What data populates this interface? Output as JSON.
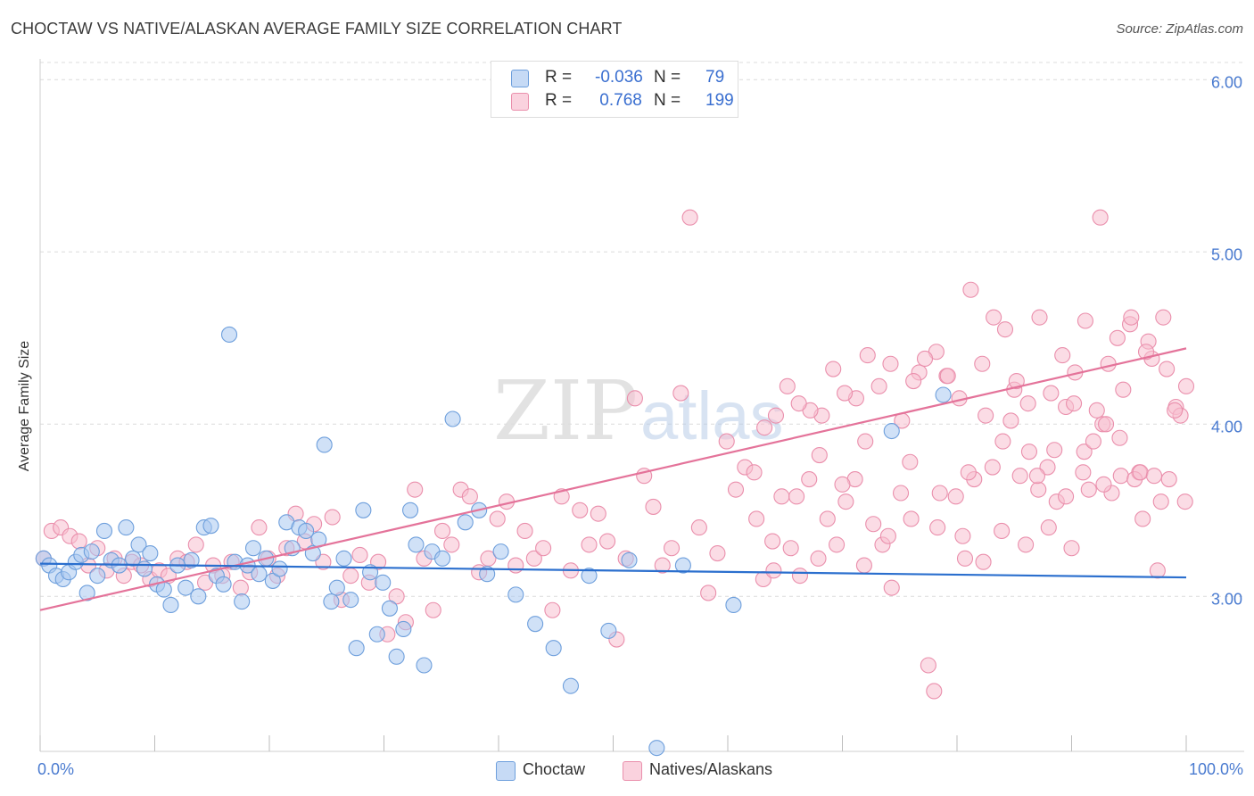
{
  "title": "CHOCTAW VS NATIVE/ALASKAN AVERAGE FAMILY SIZE CORRELATION CHART",
  "source": "Source: ZipAtlas.com",
  "watermark": {
    "zip": "ZIP",
    "atlas": "atlas"
  },
  "legend": {
    "rows": [
      {
        "r_label": "R =",
        "r_value": "-0.036",
        "n_label": "N =",
        "n_value": "79"
      },
      {
        "r_label": "R =",
        "r_value": " 0.768",
        "n_label": "N =",
        "n_value": "199"
      }
    ]
  },
  "bottom_legend": {
    "series1": "Choctaw",
    "series2": "Natives/Alaskans"
  },
  "colors": {
    "choctaw_fill": "#aac8f0",
    "choctaw_stroke": "#6e9fdc",
    "choctaw_line": "#2b6fce",
    "native_fill": "#f7c0d0",
    "native_stroke": "#ea8fac",
    "native_line": "#e4739a",
    "tick_label": "#4a7bd0",
    "grid": "#dcdcdc"
  },
  "chart_data": {
    "type": "scatter",
    "title": "CHOCTAW VS NATIVE/ALASKAN AVERAGE FAMILY SIZE CORRELATION CHART",
    "xlabel": "",
    "ylabel": "Average Family Size",
    "xlim": [
      0,
      100
    ],
    "ylim": [
      2.1,
      6.1
    ],
    "x_tick_labels": [
      "0.0%",
      "100.0%"
    ],
    "y_ticks": [
      {
        "value": 3.0,
        "label": "3.00"
      },
      {
        "value": 4.0,
        "label": "4.00"
      },
      {
        "value": 5.0,
        "label": "5.00"
      },
      {
        "value": 6.0,
        "label": "6.00"
      }
    ],
    "grid": true,
    "series": [
      {
        "name": "Choctaw",
        "R": -0.036,
        "N": 79,
        "trend": {
          "x": [
            0,
            100
          ],
          "y": [
            3.19,
            3.11
          ]
        },
        "points": [
          [
            0.3,
            3.22
          ],
          [
            0.8,
            3.18
          ],
          [
            1.4,
            3.12
          ],
          [
            2.0,
            3.1
          ],
          [
            2.5,
            3.14
          ],
          [
            3.1,
            3.2
          ],
          [
            3.6,
            3.24
          ],
          [
            4.1,
            3.02
          ],
          [
            4.5,
            3.26
          ],
          [
            5.0,
            3.12
          ],
          [
            5.6,
            3.38
          ],
          [
            6.2,
            3.21
          ],
          [
            6.9,
            3.18
          ],
          [
            7.5,
            3.4
          ],
          [
            8.1,
            3.22
          ],
          [
            8.6,
            3.3
          ],
          [
            9.1,
            3.16
          ],
          [
            9.6,
            3.25
          ],
          [
            10.2,
            3.07
          ],
          [
            10.8,
            3.04
          ],
          [
            11.4,
            2.95
          ],
          [
            12.0,
            3.18
          ],
          [
            12.7,
            3.05
          ],
          [
            13.2,
            3.21
          ],
          [
            13.8,
            3.0
          ],
          [
            14.3,
            3.4
          ],
          [
            14.9,
            3.41
          ],
          [
            15.4,
            3.12
          ],
          [
            16.0,
            3.07
          ],
          [
            16.5,
            4.52
          ],
          [
            17.0,
            3.2
          ],
          [
            17.6,
            2.97
          ],
          [
            18.1,
            3.18
          ],
          [
            18.6,
            3.28
          ],
          [
            19.1,
            3.13
          ],
          [
            19.7,
            3.22
          ],
          [
            20.3,
            3.09
          ],
          [
            20.9,
            3.16
          ],
          [
            21.5,
            3.43
          ],
          [
            22.0,
            3.28
          ],
          [
            22.6,
            3.4
          ],
          [
            23.2,
            3.38
          ],
          [
            23.8,
            3.25
          ],
          [
            24.3,
            3.33
          ],
          [
            24.8,
            3.88
          ],
          [
            25.4,
            2.97
          ],
          [
            25.9,
            3.05
          ],
          [
            26.5,
            3.22
          ],
          [
            27.1,
            2.98
          ],
          [
            27.6,
            2.7
          ],
          [
            28.2,
            3.5
          ],
          [
            28.8,
            3.14
          ],
          [
            29.4,
            2.78
          ],
          [
            29.9,
            3.08
          ],
          [
            30.5,
            2.93
          ],
          [
            31.1,
            2.65
          ],
          [
            31.7,
            2.81
          ],
          [
            32.3,
            3.5
          ],
          [
            32.8,
            3.3
          ],
          [
            33.5,
            2.6
          ],
          [
            34.2,
            3.26
          ],
          [
            35.1,
            3.22
          ],
          [
            36.0,
            4.03
          ],
          [
            37.1,
            3.43
          ],
          [
            38.3,
            3.5
          ],
          [
            39.0,
            3.13
          ],
          [
            40.2,
            3.26
          ],
          [
            41.5,
            3.01
          ],
          [
            43.2,
            2.84
          ],
          [
            44.8,
            2.7
          ],
          [
            46.3,
            2.48
          ],
          [
            47.9,
            3.12
          ],
          [
            49.6,
            2.8
          ],
          [
            51.4,
            3.21
          ],
          [
            53.8,
            2.12
          ],
          [
            56.1,
            3.18
          ],
          [
            60.5,
            2.95
          ],
          [
            74.3,
            3.96
          ],
          [
            78.8,
            4.17
          ]
        ]
      },
      {
        "name": "Natives/Alaskans",
        "R": 0.768,
        "N": 199,
        "trend": {
          "x": [
            0,
            100
          ],
          "y": [
            2.92,
            4.44
          ]
        },
        "points": [
          [
            0.3,
            3.22
          ],
          [
            1.0,
            3.38
          ],
          [
            1.8,
            3.4
          ],
          [
            2.6,
            3.35
          ],
          [
            3.4,
            3.32
          ],
          [
            4.2,
            3.18
          ],
          [
            5.0,
            3.28
          ],
          [
            5.8,
            3.15
          ],
          [
            6.5,
            3.22
          ],
          [
            7.3,
            3.12
          ],
          [
            8.0,
            3.2
          ],
          [
            8.8,
            3.18
          ],
          [
            9.6,
            3.1
          ],
          [
            10.4,
            3.15
          ],
          [
            11.2,
            3.12
          ],
          [
            12.0,
            3.22
          ],
          [
            12.8,
            3.2
          ],
          [
            13.6,
            3.3
          ],
          [
            14.4,
            3.08
          ],
          [
            15.1,
            3.18
          ],
          [
            15.9,
            3.12
          ],
          [
            16.7,
            3.2
          ],
          [
            17.5,
            3.05
          ],
          [
            18.3,
            3.14
          ],
          [
            19.1,
            3.4
          ],
          [
            19.9,
            3.22
          ],
          [
            20.7,
            3.12
          ],
          [
            21.5,
            3.28
          ],
          [
            22.3,
            3.48
          ],
          [
            23.1,
            3.32
          ],
          [
            23.9,
            3.42
          ],
          [
            24.7,
            3.2
          ],
          [
            25.5,
            3.46
          ],
          [
            26.3,
            2.98
          ],
          [
            27.1,
            3.12
          ],
          [
            27.9,
            3.24
          ],
          [
            28.7,
            3.08
          ],
          [
            29.5,
            3.2
          ],
          [
            30.3,
            2.78
          ],
          [
            31.1,
            3.0
          ],
          [
            31.9,
            2.85
          ],
          [
            32.7,
            3.62
          ],
          [
            33.5,
            3.22
          ],
          [
            34.3,
            2.92
          ],
          [
            35.1,
            3.38
          ],
          [
            35.9,
            3.3
          ],
          [
            36.7,
            3.62
          ],
          [
            37.5,
            3.58
          ],
          [
            38.3,
            3.14
          ],
          [
            39.1,
            3.22
          ],
          [
            39.9,
            3.45
          ],
          [
            40.7,
            3.55
          ],
          [
            41.5,
            3.18
          ],
          [
            42.3,
            3.38
          ],
          [
            43.1,
            3.22
          ],
          [
            43.9,
            3.28
          ],
          [
            44.7,
            2.92
          ],
          [
            45.5,
            3.58
          ],
          [
            46.3,
            3.15
          ],
          [
            47.1,
            3.5
          ],
          [
            47.9,
            3.3
          ],
          [
            48.7,
            3.48
          ],
          [
            49.5,
            3.32
          ],
          [
            50.3,
            2.75
          ],
          [
            51.1,
            3.22
          ],
          [
            51.9,
            4.15
          ],
          [
            52.7,
            3.7
          ],
          [
            53.5,
            3.52
          ],
          [
            54.3,
            3.18
          ],
          [
            55.1,
            3.28
          ],
          [
            55.9,
            4.18
          ],
          [
            56.7,
            5.2
          ],
          [
            57.5,
            3.4
          ],
          [
            58.3,
            3.02
          ],
          [
            59.1,
            3.25
          ],
          [
            59.9,
            3.9
          ],
          [
            60.7,
            3.62
          ],
          [
            61.5,
            3.75
          ],
          [
            62.3,
            3.72
          ],
          [
            63.1,
            3.1
          ],
          [
            63.9,
            3.32
          ],
          [
            64.7,
            3.58
          ],
          [
            65.5,
            3.28
          ],
          [
            66.3,
            3.12
          ],
          [
            67.1,
            3.68
          ],
          [
            67.9,
            3.22
          ],
          [
            68.7,
            3.45
          ],
          [
            69.5,
            3.3
          ],
          [
            70.3,
            3.55
          ],
          [
            71.1,
            3.68
          ],
          [
            71.9,
            3.18
          ],
          [
            72.7,
            3.42
          ],
          [
            73.5,
            3.3
          ],
          [
            74.3,
            3.05
          ],
          [
            75.1,
            3.6
          ],
          [
            75.9,
            3.78
          ],
          [
            76.7,
            4.3
          ],
          [
            77.5,
            2.6
          ],
          [
            78.3,
            3.4
          ],
          [
            79.1,
            4.28
          ],
          [
            79.9,
            3.58
          ],
          [
            80.7,
            3.22
          ],
          [
            81.5,
            3.68
          ],
          [
            82.3,
            3.2
          ],
          [
            83.1,
            3.75
          ],
          [
            83.9,
            3.38
          ],
          [
            84.7,
            4.02
          ],
          [
            85.5,
            3.7
          ],
          [
            86.3,
            3.84
          ],
          [
            87.1,
            3.62
          ],
          [
            87.9,
            3.75
          ],
          [
            88.7,
            3.55
          ],
          [
            89.5,
            3.58
          ],
          [
            90.3,
            4.3
          ],
          [
            91.1,
            3.84
          ],
          [
            91.9,
            3.9
          ],
          [
            92.7,
            4.0
          ],
          [
            93.5,
            3.6
          ],
          [
            94.3,
            3.7
          ],
          [
            95.1,
            4.58
          ],
          [
            95.9,
            3.72
          ],
          [
            96.7,
            4.48
          ],
          [
            97.5,
            3.15
          ],
          [
            98.3,
            4.32
          ],
          [
            99.1,
            4.1
          ],
          [
            99.9,
            3.55
          ],
          [
            100.0,
            4.22
          ],
          [
            78.0,
            2.45
          ],
          [
            80.5,
            3.35
          ],
          [
            85.0,
            4.2
          ],
          [
            87.0,
            3.7
          ],
          [
            88.0,
            3.4
          ],
          [
            90.0,
            3.28
          ],
          [
            91.5,
            3.62
          ],
          [
            92.5,
            5.2
          ],
          [
            93.0,
            4.0
          ],
          [
            94.0,
            4.5
          ],
          [
            95.5,
            3.68
          ],
          [
            96.0,
            3.72
          ],
          [
            97.0,
            4.38
          ],
          [
            97.8,
            3.55
          ],
          [
            98.5,
            3.68
          ],
          [
            99.5,
            4.05
          ],
          [
            62.5,
            3.45
          ],
          [
            64.0,
            3.15
          ],
          [
            66.0,
            3.58
          ],
          [
            68.0,
            3.82
          ],
          [
            70.0,
            3.65
          ],
          [
            72.0,
            3.9
          ],
          [
            74.0,
            3.35
          ],
          [
            76.0,
            3.45
          ],
          [
            78.5,
            3.6
          ],
          [
            81.0,
            3.72
          ],
          [
            82.5,
            4.05
          ],
          [
            84.0,
            3.9
          ],
          [
            86.0,
            3.3
          ],
          [
            88.5,
            3.85
          ],
          [
            89.5,
            4.1
          ],
          [
            91.0,
            3.72
          ],
          [
            92.8,
            3.65
          ],
          [
            94.5,
            4.2
          ],
          [
            96.5,
            4.42
          ],
          [
            98.0,
            4.62
          ],
          [
            99.0,
            4.08
          ],
          [
            96.2,
            3.45
          ],
          [
            97.2,
            3.7
          ],
          [
            95.2,
            4.62
          ],
          [
            94.2,
            3.92
          ],
          [
            93.2,
            4.35
          ],
          [
            92.2,
            4.08
          ],
          [
            91.2,
            4.6
          ],
          [
            90.2,
            4.12
          ],
          [
            89.2,
            4.4
          ],
          [
            88.2,
            4.18
          ],
          [
            87.2,
            4.62
          ],
          [
            86.2,
            4.12
          ],
          [
            85.2,
            4.25
          ],
          [
            84.2,
            4.55
          ],
          [
            83.2,
            4.62
          ],
          [
            82.2,
            4.35
          ],
          [
            81.2,
            4.78
          ],
          [
            80.2,
            4.15
          ],
          [
            79.2,
            4.28
          ],
          [
            78.2,
            4.42
          ],
          [
            77.2,
            4.38
          ],
          [
            76.2,
            4.25
          ],
          [
            75.2,
            4.02
          ],
          [
            74.2,
            4.35
          ],
          [
            73.2,
            4.22
          ],
          [
            72.2,
            4.4
          ],
          [
            71.2,
            4.15
          ],
          [
            70.2,
            4.18
          ],
          [
            69.2,
            4.32
          ],
          [
            68.2,
            4.05
          ],
          [
            67.2,
            4.08
          ],
          [
            66.2,
            4.12
          ],
          [
            65.2,
            4.22
          ],
          [
            64.2,
            4.05
          ],
          [
            63.2,
            3.98
          ]
        ]
      }
    ]
  }
}
